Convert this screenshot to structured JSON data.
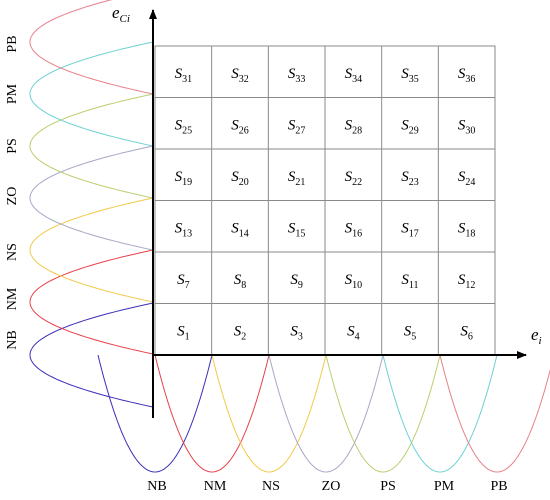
{
  "axes": {
    "horizontal": {
      "label": "e",
      "subscript": "i"
    },
    "vertical": {
      "label": "e",
      "subscript": "Ci"
    }
  },
  "fuzzy_sets": [
    "NB",
    "NM",
    "NS",
    "ZO",
    "PS",
    "PM",
    "PB"
  ],
  "curve_colors": {
    "NB": "#3a2fb8",
    "NM": "#e8404a",
    "NS": "#f2c94a",
    "ZO": "#a7a7c7",
    "PS": "#b9cf6f",
    "PM": "#6fd0d4",
    "PB": "#e8808a"
  },
  "grid": {
    "rows": 6,
    "cols": 6,
    "cells": [
      [
        "S",
        "31"
      ],
      [
        "S",
        "32"
      ],
      [
        "S",
        "33"
      ],
      [
        "S",
        "34"
      ],
      [
        "S",
        "35"
      ],
      [
        "S",
        "36"
      ],
      [
        "S",
        "25"
      ],
      [
        "S",
        "26"
      ],
      [
        "S",
        "27"
      ],
      [
        "S",
        "28"
      ],
      [
        "S",
        "29"
      ],
      [
        "S",
        "30"
      ],
      [
        "S",
        "19"
      ],
      [
        "S",
        "20"
      ],
      [
        "S",
        "21"
      ],
      [
        "S",
        "22"
      ],
      [
        "S",
        "23"
      ],
      [
        "S",
        "24"
      ],
      [
        "S",
        "13"
      ],
      [
        "S",
        "14"
      ],
      [
        "S",
        "15"
      ],
      [
        "S",
        "16"
      ],
      [
        "S",
        "17"
      ],
      [
        "S",
        "18"
      ],
      [
        "S",
        "7"
      ],
      [
        "S",
        "8"
      ],
      [
        "S",
        "9"
      ],
      [
        "S",
        "10"
      ],
      [
        "S",
        "11"
      ],
      [
        "S",
        "12"
      ],
      [
        "S",
        "1"
      ],
      [
        "S",
        "2"
      ],
      [
        "S",
        "3"
      ],
      [
        "S",
        "4"
      ],
      [
        "S",
        "5"
      ],
      [
        "S",
        "6"
      ]
    ]
  }
}
